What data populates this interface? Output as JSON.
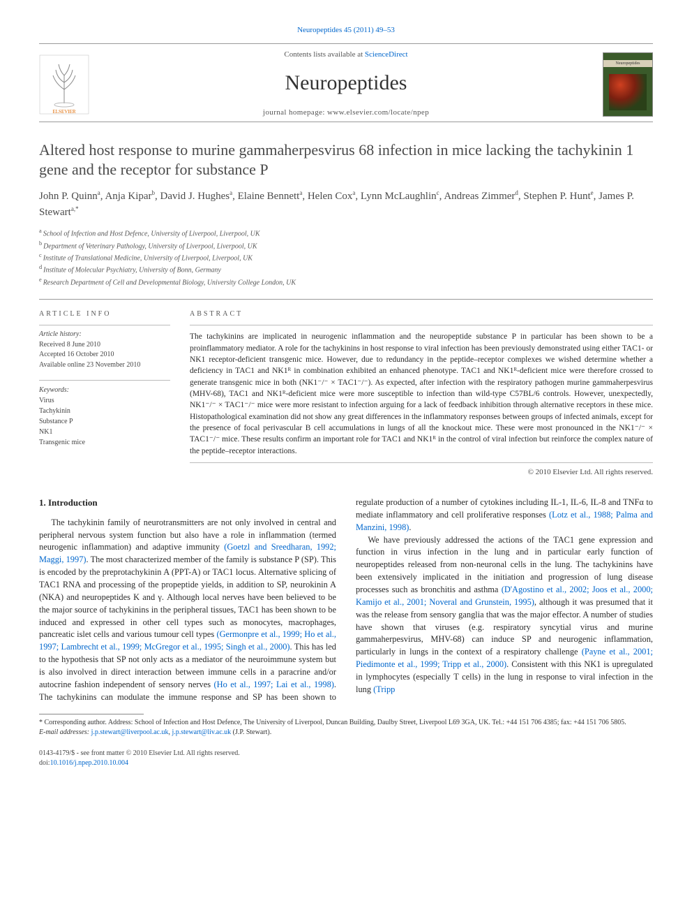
{
  "top_ref": {
    "journal": "Neuropeptides",
    "vol": "45 (2011) 49–53"
  },
  "masthead": {
    "contents_line_prefix": "Contents lists available at ",
    "contents_line_link": "ScienceDirect",
    "journal_title": "Neuropeptides",
    "homepage_prefix": "journal homepage: ",
    "homepage_url": "www.elsevier.com/locate/npep",
    "cover_label": "Neuropeptides"
  },
  "title": "Altered host response to murine gammaherpesvirus 68 infection in mice lacking the tachykinin 1 gene and the receptor for substance P",
  "authors": [
    {
      "name": "John P. Quinn",
      "aff": "a"
    },
    {
      "name": "Anja Kipar",
      "aff": "b"
    },
    {
      "name": "David J. Hughes",
      "aff": "a"
    },
    {
      "name": "Elaine Bennett",
      "aff": "a"
    },
    {
      "name": "Helen Cox",
      "aff": "a"
    },
    {
      "name": "Lynn McLaughlin",
      "aff": "c"
    },
    {
      "name": "Andreas Zimmer",
      "aff": "d"
    },
    {
      "name": "Stephen P. Hunt",
      "aff": "e"
    },
    {
      "name": "James P. Stewart",
      "aff": "a,*",
      "corr": true
    }
  ],
  "affiliations": [
    {
      "key": "a",
      "text": "School of Infection and Host Defence, University of Liverpool, Liverpool, UK"
    },
    {
      "key": "b",
      "text": "Department of Veterinary Pathology, University of Liverpool, Liverpool, UK"
    },
    {
      "key": "c",
      "text": "Institute of Translational Medicine, University of Liverpool, Liverpool, UK"
    },
    {
      "key": "d",
      "text": "Institute of Molecular Psychiatry, University of Bonn, Germany"
    },
    {
      "key": "e",
      "text": "Research Department of Cell and Developmental Biology, University College London, UK"
    }
  ],
  "article_info": {
    "heading": "article info",
    "history_label": "Article history:",
    "history": [
      "Received 8 June 2010",
      "Accepted 16 October 2010",
      "Available online 23 November 2010"
    ],
    "keywords_label": "Keywords:",
    "keywords": [
      "Virus",
      "Tachykinin",
      "Substance P",
      "NK1",
      "Transgenic mice"
    ]
  },
  "abstract": {
    "heading": "abstract",
    "body": "The tachykinins are implicated in neurogenic inflammation and the neuropeptide substance P in particular has been shown to be a proinflammatory mediator. A role for the tachykinins in host response to viral infection has been previously demonstrated using either TAC1- or NK1 receptor-deficient transgenic mice. However, due to redundancy in the peptide–receptor complexes we wished determine whether a deficiency in TAC1 and NK1ᴿ in combination exhibited an enhanced phenotype. TAC1 and NK1ᴿ-deficient mice were therefore crossed to generate transgenic mice in both (NK1⁻/⁻ × TAC1⁻/⁻). As expected, after infection with the respiratory pathogen murine gammaherpesvirus (MHV-68), TAC1 and NK1ᴿ-deficient mice were more susceptible to infection than wild-type C57BL/6 controls. However, unexpectedly, NK1⁻/⁻ × TAC1⁻/⁻ mice were more resistant to infection arguing for a lack of feedback inhibition through alternative receptors in these mice. Histopathological examination did not show any great differences in the inflammatory responses between groups of infected animals, except for the presence of focal perivascular B cell accumulations in lungs of all the knockout mice. These were most pronounced in the NK1⁻/⁻ × TAC1⁻/⁻ mice. These results confirm an important role for TAC1 and NK1ᴿ in the control of viral infection but reinforce the complex nature of the peptide–receptor interactions.",
    "copyright": "© 2010 Elsevier Ltd. All rights reserved."
  },
  "section1": {
    "heading": "1. Introduction",
    "p1a": "The tachykinin family of neurotransmitters are not only involved in central and peripheral nervous system function but also have a role in inflammation (termed neurogenic inflammation) and adaptive immunity ",
    "p1cite1": "(Goetzl and Sreedharan, 1992; Maggi, 1997)",
    "p1b": ". The most characterized member of the family is substance P (SP). This is encoded by the preprotachykinin A (PPT-A) or TAC1 locus. Alternative splicing of TAC1 RNA and processing of the propeptide yields, in addition to SP, neurokinin A (NKA) and neuropeptides K and γ. Although local nerves have been believed to be the major source of tachykinins in the peripheral tissues, TAC1 has been shown to be induced and expressed in other cell types such as monocytes, macrophages, pancreatic islet cells and various tumour cell types ",
    "p1cite2": "(Germonpre et al., 1999; Ho et al., 1997; Lambrecht et al., 1999; McGregor et al., 1995; Singh et al., 2000)",
    "p1c": ". This has led to the hypothesis that SP not only acts as a mediator of the neuroimmune system but is also involved in direct interaction between immune cells in a paracrine and/or autocrine fashion independent of sensory nerves ",
    "p1cite3": "(Ho et al., 1997; Lai et al., 1998)",
    "p1d": ". The tachykinins can modulate the immune response and SP has been shown to regulate production of a number of cytokines including IL-1, IL-6, IL-8 and TNFα to mediate inflammatory and cell proliferative responses ",
    "p1cite4": "(Lotz et al., 1988; Palma and Manzini, 1998)",
    "p1e": ".",
    "p2a": "We have previously addressed the actions of the TAC1 gene expression and function in virus infection in the lung and in particular early function of neuropeptides released from non-neuronal cells in the lung. The tachykinins have been extensively implicated in the initiation and progression of lung disease processes such as bronchitis and asthma ",
    "p2cite1": "(D'Agostino et al., 2002; Joos et al., 2000; Kamijo et al., 2001; Noveral and Grunstein, 1995)",
    "p2b": ", although it was presumed that it was the release from sensory ganglia that was the major effector. A number of studies have shown that viruses (e.g. respiratory syncytial virus and murine gammaherpesvirus, MHV-68) can induce SP and neurogenic inflammation, particularly in lungs in the context of a respiratory challenge ",
    "p2cite2": "(Payne et al., 2001; Piedimonte et al., 1999; Tripp et al., 2000)",
    "p2c": ". Consistent with this NK1 is upregulated in lymphocytes (especially T cells) in the lung in response to viral infection in the lung ",
    "p2cite3": "(Tripp"
  },
  "footnotes": {
    "corr_label": "* Corresponding author. Address: School of Infection and Host Defence, The University of Liverpool, Duncan Building, Daulby Street, Liverpool L69 3GA, UK. Tel.: +44 151 706 4385; fax: +44 151 706 5805.",
    "email_label": "E-mail addresses: ",
    "email1": "j.p.stewart@liverpool.ac.uk",
    "email_sep": ", ",
    "email2": "j.p.stewart@liv.ac.uk",
    "email_suffix": " (J.P. Stewart)."
  },
  "bottom": {
    "left1": "0143-4179/$ - see front matter © 2010 Elsevier Ltd. All rights reserved.",
    "left2_prefix": "doi:",
    "left2_link": "10.1016/j.npep.2010.10.004"
  },
  "colors": {
    "link": "#0066cc",
    "rule": "#999999",
    "text": "#2a2a2a",
    "muted": "#555555"
  }
}
